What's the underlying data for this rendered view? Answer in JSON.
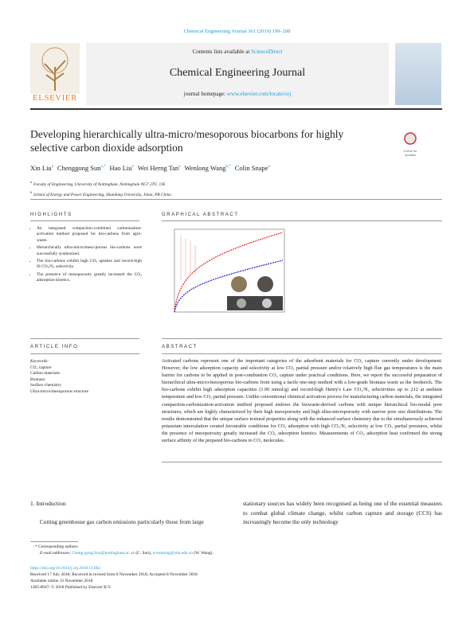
{
  "journal_ref": "Chemical Engineering Journal 361 (2019) 199–208",
  "header": {
    "contents": "Contents lists available at",
    "sciencedirect": "ScienceDirect",
    "journal": "Chemical Engineering Journal",
    "homepage_label": "journal homepage:",
    "homepage_url": "www.elsevier.com/locate/cej",
    "publisher": "ELSEVIER",
    "check": "Check for updates"
  },
  "title": "Developing hierarchically ultra-micro/mesoporous biocarbons for highly selective carbon dioxide adsorption",
  "authors": [
    {
      "name": "Xin Liu",
      "sup": "a"
    },
    {
      "name": "Chenggong Sun",
      "sup": "a,*"
    },
    {
      "name": "Hao Liu",
      "sup": "a"
    },
    {
      "name": "Wei Herng Tan",
      "sup": "a"
    },
    {
      "name": "Wenlong Wang",
      "sup": "b,*"
    },
    {
      "name": "Colin Snape",
      "sup": "a"
    }
  ],
  "affiliations": [
    {
      "label": "a",
      "text": "Faculty of Engineering, University of Nottingham, Nottingham NG7 2TU, UK"
    },
    {
      "label": "b",
      "text": "School of Energy and Power Engineering, Shandong University, Jinan, PR China"
    }
  ],
  "highlights": {
    "heading": "HIGHLIGHTS",
    "items": [
      "An integrated compaction-combined carbonisation-activation method proposed for bio-carbons from agro-waste.",
      "Hierarchically ultra-micro/meso-porous bio-carbons were successfully synthesized.",
      "The bio-carbons exhibit high CO₂ uptakes and record-high IS CO₂/N₂ selectivity.",
      "The presence of mesoporosity greatly increased the CO₂ adsorption kinetics."
    ]
  },
  "graphical_abstract": {
    "heading": "GRAPHICAL ABSTRACT"
  },
  "article_info": {
    "heading": "ARTICLE INFO",
    "keywords_label": "Keywords:",
    "keywords": [
      "CO₂ capture",
      "Carbon materials",
      "Biomass",
      "Surface chemistry",
      "Ultra-micro/mesoporous structure"
    ]
  },
  "abstract": {
    "heading": "ABSTRACT",
    "text": "Activated carbons represent one of the important categories of the adsorbent materials for CO₂ capture currently under development. However, the low adsorption capacity and selectivity at low CO₂ partial pressure and/or relatively high flue gas temperatures is the main barrier for carbons to be applied in post-combustion CO₂ capture under practical conditions. Here, we report the successful preparation of hierarchical ultra-micro/mesoporous bio-carbons from using a facile one-step method with a low-grade biomass waste as the feedstock. The bio-carbons exhibit high adsorption capacities (1.90 mmol/g) and record-high Henry's Law CO₂/N₂ selectivities up to 212 at ambient temperature and low CO₂ partial pressure. Unlike conventional chemical activation process for manufacturing carbon materials, the integrated compaction-carbonization-activation method proposed endows the biowaste-derived carbons with unique hierarchical bio-modal pore structures, which are highly characterized by their high mesoporosity and high ultra-microporosity with narrow pore size distributions. The results demonstrated that the unique surface textural properties along with the enhanced surface chemistry due to the simultaneously achieved potassium intercalation created favourable conditions for CO₂ adsorption with high CO₂/N₂ selectivity at low CO₂ partial pressures, whilst the presence of mesoporosity greatly increased the CO₂ adsorption kinetics. Measurements of CO₂ adsorption heat confirmed the strong surface affinity of the prepared bio-carbons to CO₂ molecules."
  },
  "introduction": {
    "heading": "1. Introduction",
    "left": "Cutting greenhouse gas carbon emissions particularly those from large",
    "right": "stationary sources has widely been recognised as being one of the essential measures to combat global climate change, whilst carbon capture and storage (CCS) has increasingly become the only technology"
  },
  "footnotes": {
    "corresponding": "* Corresponding authors.",
    "email_label": "E-mail addresses:",
    "email1": "Cheng-gong.Sun@nottingham.ac.uk",
    "name1": "(C. Sun),",
    "email2": "wwenlong@sdu.edu.cn",
    "name2": "(W. Wang)."
  },
  "article_meta": {
    "doi": "https://doi.org/10.1016/j.cej.2018.11.062",
    "received": "Received 17 July 2018; Received in revised form 6 November 2018; Accepted 8 November 2018",
    "online": "Available online 13 November 2018",
    "copyright": "1385-8947/ © 2018 Published by Elsevier B.V."
  }
}
